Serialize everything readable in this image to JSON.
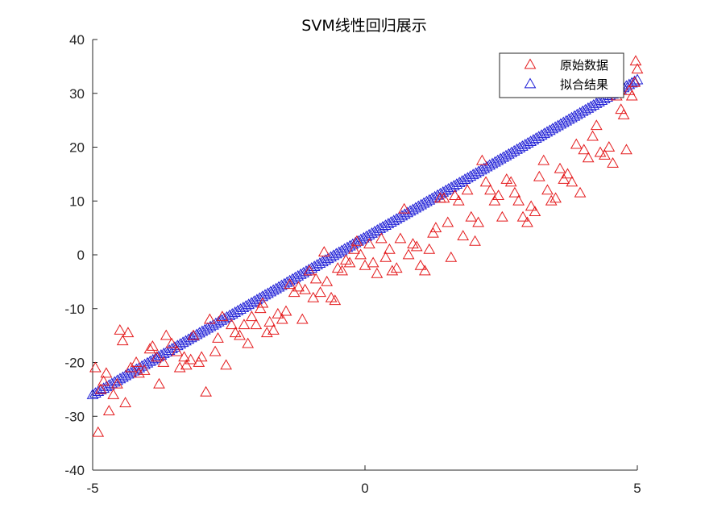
{
  "chart_data": {
    "type": "scatter",
    "title": "SVM线性回归展示",
    "xlabel": "",
    "ylabel": "",
    "xlim": [
      -5,
      5
    ],
    "ylim": [
      -40,
      40
    ],
    "xticks": [
      -5,
      0,
      5
    ],
    "yticks": [
      -40,
      -30,
      -20,
      -10,
      0,
      10,
      20,
      30,
      40
    ],
    "grid": false,
    "legend_position": "top-right",
    "series": [
      {
        "name": "原始数据",
        "color": "#e41a1c",
        "marker": "triangle-open",
        "points": [
          [
            -4.95,
            -21
          ],
          [
            -4.9,
            -33
          ],
          [
            -4.85,
            -25
          ],
          [
            -4.8,
            -23.5
          ],
          [
            -4.75,
            -22
          ],
          [
            -4.7,
            -29
          ],
          [
            -4.62,
            -26
          ],
          [
            -4.55,
            -24
          ],
          [
            -4.5,
            -14
          ],
          [
            -4.45,
            -16
          ],
          [
            -4.4,
            -27.5
          ],
          [
            -4.35,
            -14.5
          ],
          [
            -4.3,
            -21
          ],
          [
            -4.2,
            -20
          ],
          [
            -4.15,
            -22
          ],
          [
            -4.05,
            -21.5
          ],
          [
            -3.95,
            -17.5
          ],
          [
            -3.9,
            -17
          ],
          [
            -3.82,
            -19
          ],
          [
            -3.78,
            -24
          ],
          [
            -3.7,
            -20
          ],
          [
            -3.65,
            -15
          ],
          [
            -3.55,
            -16.5
          ],
          [
            -3.45,
            -18
          ],
          [
            -3.4,
            -21
          ],
          [
            -3.32,
            -19
          ],
          [
            -3.28,
            -20.5
          ],
          [
            -3.2,
            -19.5
          ],
          [
            -3.15,
            -15
          ],
          [
            -3.05,
            -20
          ],
          [
            -3.0,
            -19
          ],
          [
            -2.92,
            -25.5
          ],
          [
            -2.85,
            -12
          ],
          [
            -2.75,
            -18
          ],
          [
            -2.7,
            -15.5
          ],
          [
            -2.62,
            -11.5
          ],
          [
            -2.55,
            -20.5
          ],
          [
            -2.45,
            -13
          ],
          [
            -2.38,
            -14.5
          ],
          [
            -2.3,
            -15
          ],
          [
            -2.22,
            -13
          ],
          [
            -2.15,
            -16.5
          ],
          [
            -2.08,
            -11.5
          ],
          [
            -2.0,
            -13
          ],
          [
            -1.92,
            -10
          ],
          [
            -1.88,
            -9
          ],
          [
            -1.8,
            -14.5
          ],
          [
            -1.75,
            -12.5
          ],
          [
            -1.68,
            -14
          ],
          [
            -1.6,
            -11
          ],
          [
            -1.52,
            -12
          ],
          [
            -1.45,
            -10.5
          ],
          [
            -1.38,
            -5.5
          ],
          [
            -1.3,
            -7
          ],
          [
            -1.22,
            -6
          ],
          [
            -1.15,
            -12
          ],
          [
            -1.1,
            -6.5
          ],
          [
            -1.02,
            -3
          ],
          [
            -0.95,
            -8
          ],
          [
            -0.9,
            -4.5
          ],
          [
            -0.82,
            -7
          ],
          [
            -0.75,
            0.5
          ],
          [
            -0.7,
            -5
          ],
          [
            -0.62,
            -8
          ],
          [
            -0.55,
            -8.5
          ],
          [
            -0.5,
            -2.5
          ],
          [
            -0.42,
            -3
          ],
          [
            -0.35,
            -1
          ],
          [
            -0.28,
            -1.5
          ],
          [
            -0.2,
            1
          ],
          [
            -0.15,
            2.5
          ],
          [
            -0.08,
            0
          ],
          [
            0.0,
            -2
          ],
          [
            0.08,
            2
          ],
          [
            0.15,
            -1.5
          ],
          [
            0.22,
            -3.5
          ],
          [
            0.3,
            3
          ],
          [
            0.38,
            -0.5
          ],
          [
            0.45,
            1
          ],
          [
            0.5,
            -3
          ],
          [
            0.58,
            -2.5
          ],
          [
            0.65,
            3
          ],
          [
            0.72,
            8.5
          ],
          [
            0.8,
            0
          ],
          [
            0.88,
            2
          ],
          [
            0.95,
            1.5
          ],
          [
            1.02,
            -2
          ],
          [
            1.1,
            -3
          ],
          [
            1.18,
            1
          ],
          [
            1.25,
            4
          ],
          [
            1.3,
            5
          ],
          [
            1.38,
            10.5
          ],
          [
            1.45,
            10.5
          ],
          [
            1.52,
            6
          ],
          [
            1.58,
            -0.5
          ],
          [
            1.65,
            11
          ],
          [
            1.72,
            10
          ],
          [
            1.8,
            3.5
          ],
          [
            1.88,
            12
          ],
          [
            1.95,
            7
          ],
          [
            2.02,
            2.5
          ],
          [
            2.08,
            6
          ],
          [
            2.15,
            17.5
          ],
          [
            2.22,
            13.5
          ],
          [
            2.3,
            12
          ],
          [
            2.38,
            10
          ],
          [
            2.45,
            11
          ],
          [
            2.52,
            7
          ],
          [
            2.6,
            14
          ],
          [
            2.68,
            13.5
          ],
          [
            2.75,
            11.5
          ],
          [
            2.82,
            10
          ],
          [
            2.9,
            7
          ],
          [
            2.98,
            6
          ],
          [
            3.05,
            9
          ],
          [
            3.12,
            8
          ],
          [
            3.2,
            14.5
          ],
          [
            3.28,
            17.5
          ],
          [
            3.35,
            12
          ],
          [
            3.42,
            10
          ],
          [
            3.5,
            10.5
          ],
          [
            3.58,
            16
          ],
          [
            3.65,
            14
          ],
          [
            3.72,
            15
          ],
          [
            3.8,
            13.5
          ],
          [
            3.88,
            20.5
          ],
          [
            3.95,
            11.5
          ],
          [
            4.02,
            19.5
          ],
          [
            4.1,
            18
          ],
          [
            4.18,
            22
          ],
          [
            4.25,
            24
          ],
          [
            4.32,
            19
          ],
          [
            4.4,
            18.5
          ],
          [
            4.48,
            20
          ],
          [
            4.55,
            17
          ],
          [
            4.62,
            29.5
          ],
          [
            4.7,
            27
          ],
          [
            4.75,
            26
          ],
          [
            4.8,
            19.5
          ],
          [
            4.85,
            30.5
          ],
          [
            4.9,
            29.5
          ],
          [
            4.95,
            32
          ],
          [
            4.97,
            36
          ],
          [
            5.0,
            34.5
          ]
        ]
      },
      {
        "name": "拟合结果",
        "color": "#1f1fd6",
        "marker": "triangle-open",
        "fit_line": {
          "x_start": -5,
          "x_end": 5,
          "y_start": -26,
          "y_end": 32.5,
          "n_points": 200
        }
      }
    ]
  }
}
